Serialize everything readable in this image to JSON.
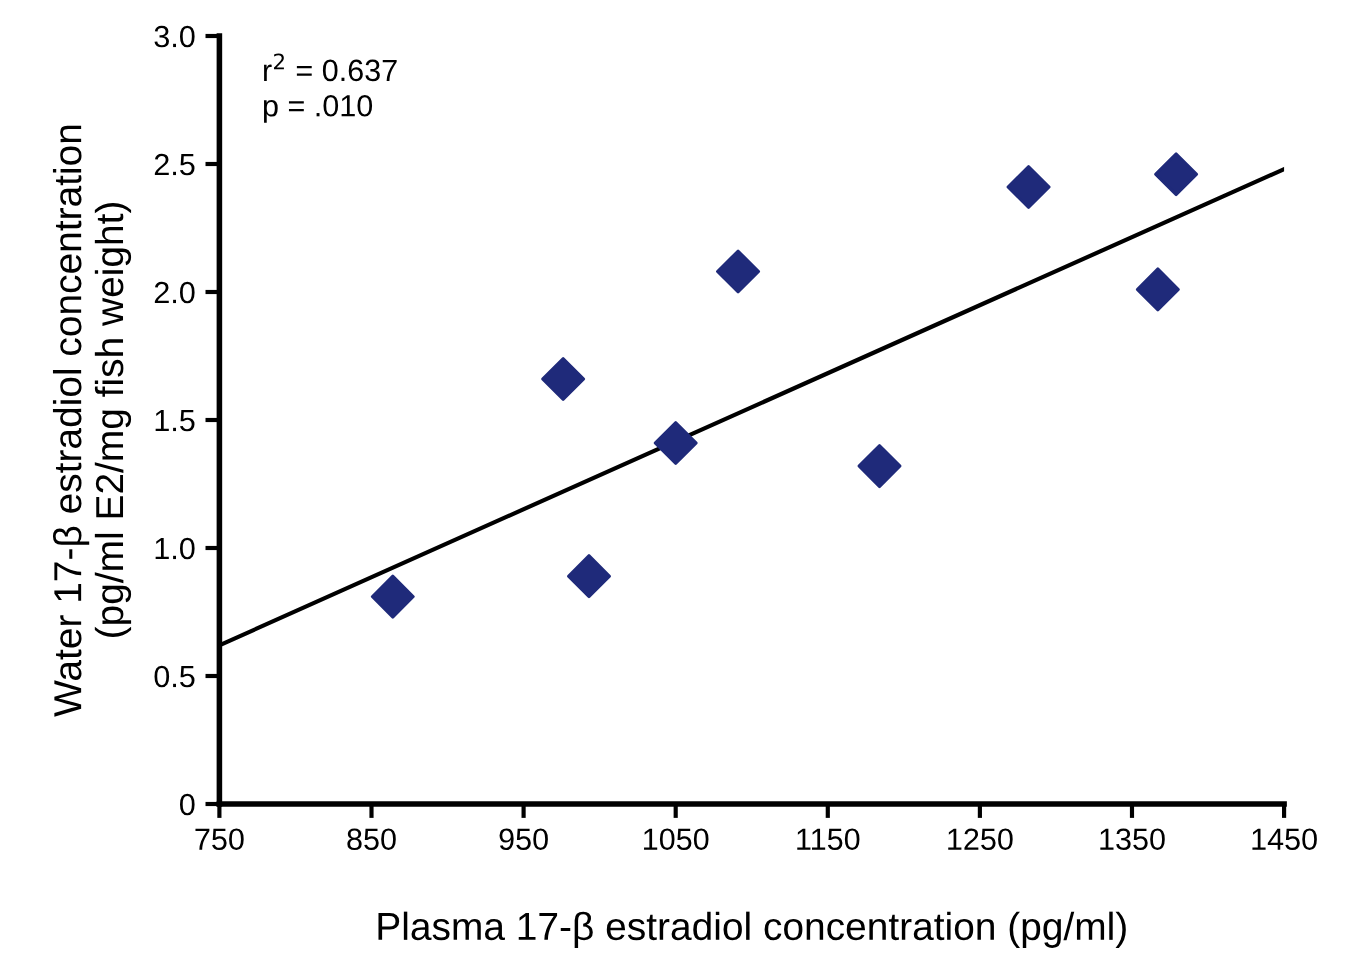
{
  "chart_data": {
    "type": "scatter",
    "xlabel": "Plasma 17-β estradiol concentration (pg/ml)",
    "ylabel": "Water 17-β estradiol concentration\n(pg/ml E2/mg fish weight)",
    "annotations": [
      "r$^{2}$ = 0.637\np = .010"
    ],
    "series": [
      {
        "color": "#1f2a7a",
        "marker": "diamond",
        "x": [
          864,
          976,
          993,
          1050,
          1091,
          1184,
          1282,
          1367,
          1379
        ],
        "values": [
          0.81,
          1.66,
          0.89,
          1.41,
          2.08,
          1.32,
          2.41,
          2.01,
          2.46
        ]
      },
      {
        "type": "line",
        "color": "#000000",
        "marker": "none",
        "line_style": "solid",
        "x": [
          750,
          1450
        ],
        "values": [
          0.62,
          2.48
        ]
      }
    ],
    "xlim": [
      750,
      1450
    ],
    "xticks": [
      750,
      850,
      950,
      1050,
      1150,
      1250,
      1350,
      1450
    ],
    "ylim": [
      0,
      3.0
    ],
    "yticks": [
      {
        "value": 0,
        "label": "0"
      },
      {
        "value": 0.5,
        "label": "0.5"
      },
      {
        "value": 1.0,
        "label": "1.0"
      },
      {
        "value": 1.5,
        "label": "1.5"
      },
      {
        "value": 2.0,
        "label": "2.0"
      },
      {
        "value": 2.5,
        "label": "2.5"
      },
      {
        "value": 3.0,
        "label": "3.0"
      }
    ],
    "grid": false,
    "legend": false
  }
}
